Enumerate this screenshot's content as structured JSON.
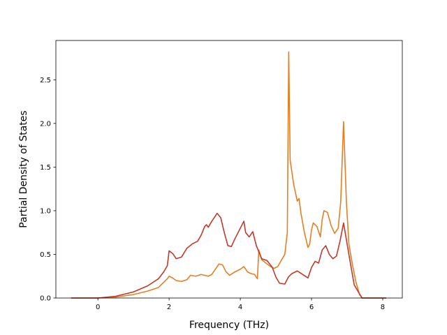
{
  "chart_data": {
    "type": "line",
    "title": "",
    "xlabel": "Frequency (THz)",
    "ylabel": "Partial Density of States",
    "xlim": [
      -1.18,
      8.55
    ],
    "ylim": [
      0.0,
      2.95
    ],
    "xticks": [
      0,
      2,
      4,
      6,
      8
    ],
    "xtick_labels": [
      "0",
      "2",
      "4",
      "6",
      "8"
    ],
    "yticks": [
      0.0,
      0.5,
      1.0,
      1.5,
      2.0,
      2.5
    ],
    "ytick_labels": [
      "0.0",
      "0.5",
      "1.0",
      "1.5",
      "2.0",
      "2.5"
    ],
    "grid": false,
    "legend": "none",
    "series": [
      {
        "color": "#e67e22",
        "points": [
          [
            -0.75,
            0.0
          ],
          [
            0.0,
            0.0
          ],
          [
            0.5,
            0.01
          ],
          [
            1.0,
            0.04
          ],
          [
            1.4,
            0.08
          ],
          [
            1.7,
            0.12
          ],
          [
            1.85,
            0.18
          ],
          [
            1.95,
            0.22
          ],
          [
            2.0,
            0.25
          ],
          [
            2.1,
            0.23
          ],
          [
            2.2,
            0.2
          ],
          [
            2.35,
            0.19
          ],
          [
            2.5,
            0.21
          ],
          [
            2.6,
            0.26
          ],
          [
            2.75,
            0.25
          ],
          [
            2.9,
            0.27
          ],
          [
            3.0,
            0.26
          ],
          [
            3.1,
            0.25
          ],
          [
            3.2,
            0.27
          ],
          [
            3.3,
            0.33
          ],
          [
            3.4,
            0.39
          ],
          [
            3.5,
            0.38
          ],
          [
            3.6,
            0.3
          ],
          [
            3.7,
            0.26
          ],
          [
            3.85,
            0.3
          ],
          [
            4.0,
            0.33
          ],
          [
            4.1,
            0.36
          ],
          [
            4.2,
            0.3
          ],
          [
            4.3,
            0.28
          ],
          [
            4.4,
            0.27
          ],
          [
            4.48,
            0.22
          ],
          [
            4.52,
            0.55
          ],
          [
            4.6,
            0.44
          ],
          [
            4.75,
            0.39
          ],
          [
            4.85,
            0.36
          ],
          [
            4.95,
            0.34
          ],
          [
            5.05,
            0.36
          ],
          [
            5.15,
            0.43
          ],
          [
            5.25,
            0.5
          ],
          [
            5.32,
            0.75
          ],
          [
            5.36,
            2.82
          ],
          [
            5.4,
            1.58
          ],
          [
            5.5,
            1.3
          ],
          [
            5.6,
            1.11
          ],
          [
            5.65,
            1.14
          ],
          [
            5.7,
            0.98
          ],
          [
            5.8,
            0.75
          ],
          [
            5.9,
            0.58
          ],
          [
            5.95,
            0.62
          ],
          [
            6.0,
            0.78
          ],
          [
            6.05,
            0.86
          ],
          [
            6.15,
            0.82
          ],
          [
            6.25,
            0.7
          ],
          [
            6.3,
            0.9
          ],
          [
            6.35,
            1.0
          ],
          [
            6.45,
            0.98
          ],
          [
            6.55,
            0.83
          ],
          [
            6.65,
            0.74
          ],
          [
            6.75,
            0.8
          ],
          [
            6.82,
            1.1
          ],
          [
            6.9,
            2.02
          ],
          [
            6.98,
            1.1
          ],
          [
            7.05,
            0.62
          ],
          [
            7.15,
            0.38
          ],
          [
            7.25,
            0.18
          ],
          [
            7.35,
            0.04
          ],
          [
            7.42,
            0.0
          ],
          [
            8.1,
            0.0
          ]
        ]
      },
      {
        "color": "#c0392b",
        "points": [
          [
            -0.75,
            0.0
          ],
          [
            0.0,
            0.0
          ],
          [
            0.5,
            0.02
          ],
          [
            1.0,
            0.07
          ],
          [
            1.4,
            0.14
          ],
          [
            1.7,
            0.22
          ],
          [
            1.85,
            0.3
          ],
          [
            1.95,
            0.37
          ],
          [
            2.0,
            0.54
          ],
          [
            2.1,
            0.51
          ],
          [
            2.2,
            0.45
          ],
          [
            2.35,
            0.47
          ],
          [
            2.5,
            0.57
          ],
          [
            2.65,
            0.62
          ],
          [
            2.8,
            0.65
          ],
          [
            2.9,
            0.72
          ],
          [
            3.0,
            0.82
          ],
          [
            3.05,
            0.84
          ],
          [
            3.1,
            0.81
          ],
          [
            3.2,
            0.88
          ],
          [
            3.35,
            0.97
          ],
          [
            3.45,
            0.92
          ],
          [
            3.55,
            0.75
          ],
          [
            3.65,
            0.6
          ],
          [
            3.75,
            0.59
          ],
          [
            3.85,
            0.68
          ],
          [
            4.0,
            0.8
          ],
          [
            4.1,
            0.88
          ],
          [
            4.15,
            0.75
          ],
          [
            4.25,
            0.7
          ],
          [
            4.35,
            0.76
          ],
          [
            4.45,
            0.6
          ],
          [
            4.6,
            0.45
          ],
          [
            4.75,
            0.43
          ],
          [
            4.9,
            0.35
          ],
          [
            5.0,
            0.24
          ],
          [
            5.1,
            0.17
          ],
          [
            5.25,
            0.16
          ],
          [
            5.35,
            0.24
          ],
          [
            5.45,
            0.28
          ],
          [
            5.6,
            0.31
          ],
          [
            5.75,
            0.27
          ],
          [
            5.9,
            0.23
          ],
          [
            6.0,
            0.35
          ],
          [
            6.1,
            0.42
          ],
          [
            6.2,
            0.4
          ],
          [
            6.3,
            0.55
          ],
          [
            6.4,
            0.6
          ],
          [
            6.5,
            0.5
          ],
          [
            6.6,
            0.45
          ],
          [
            6.7,
            0.48
          ],
          [
            6.8,
            0.65
          ],
          [
            6.9,
            0.86
          ],
          [
            7.0,
            0.62
          ],
          [
            7.1,
            0.38
          ],
          [
            7.2,
            0.15
          ],
          [
            7.3,
            0.08
          ],
          [
            7.42,
            0.0
          ],
          [
            8.1,
            0.0
          ]
        ]
      }
    ]
  }
}
